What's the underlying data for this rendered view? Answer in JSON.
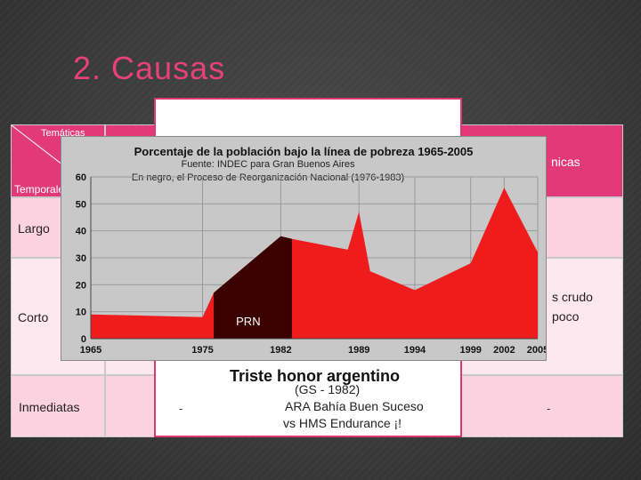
{
  "slide": {
    "title": "2. Causas"
  },
  "table": {
    "corner_top": "Temáticas",
    "corner_bottom": "Temporales",
    "header_right_partial": "nicas",
    "rows": [
      {
        "label": "Largo"
      },
      {
        "label": "Corto"
      },
      {
        "label": "Inmediatas",
        "dash_left": "-",
        "dash_right": "-"
      }
    ],
    "corto_partial_1": "s crudo",
    "corto_partial_2": "poco"
  },
  "overlay": {
    "title": "Triste honor argentino",
    "line1": "(GS - 1982)",
    "line2": "ARA Bahía Buen Suceso",
    "line3": "vs HMS Endurance ¡!"
  },
  "chart_data": {
    "type": "area",
    "title": "Porcentaje de la población bajo la línea de pobreza 1965-2005",
    "subtitle": "Fuente: INDEC para Gran Buenos Aires",
    "note": "En negro, el Proceso de Reorganización Nacional (1976-1983)",
    "annotation": "PRN",
    "x": [
      1965,
      1975,
      1976,
      1982,
      1983,
      1988,
      1989,
      1990,
      1994,
      1999,
      2002,
      2005
    ],
    "values": [
      9,
      8,
      17,
      38,
      37,
      33,
      47,
      25,
      18,
      28,
      56,
      32
    ],
    "x_ticks": [
      "1965",
      "1975",
      "1982",
      "1989",
      "1994",
      "1999",
      "2002",
      "2005"
    ],
    "y_ticks": [
      "0",
      "10",
      "20",
      "30",
      "40",
      "50",
      "60"
    ],
    "ylim": [
      0,
      60
    ],
    "highlight_range": [
      1976,
      1983
    ],
    "colors": {
      "series": "#ee1c1c",
      "highlight": "#3b0000",
      "background": "#c8c8c8"
    },
    "grid": true
  }
}
